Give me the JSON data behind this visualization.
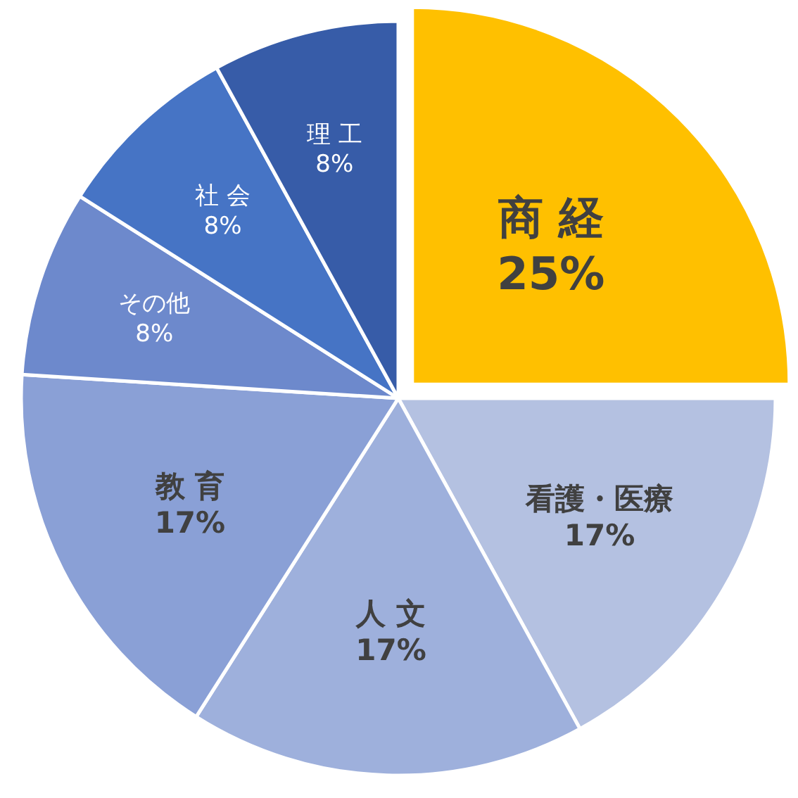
{
  "chart_data": {
    "type": "pie",
    "categories": [
      "商 経",
      "看護・医療",
      "人 文",
      "教 育",
      "その他",
      "社 会",
      "理 工"
    ],
    "values": [
      25,
      17,
      17,
      17,
      8,
      8,
      8
    ],
    "value_labels": [
      "25%",
      "17%",
      "17%",
      "17%",
      "8%",
      "8%",
      "8%"
    ],
    "colors": [
      "#ffc000",
      "#b4c1e1",
      "#9eb0dc",
      "#8aa0d6",
      "#6d89cc",
      "#4674c5",
      "#375ca8"
    ]
  }
}
